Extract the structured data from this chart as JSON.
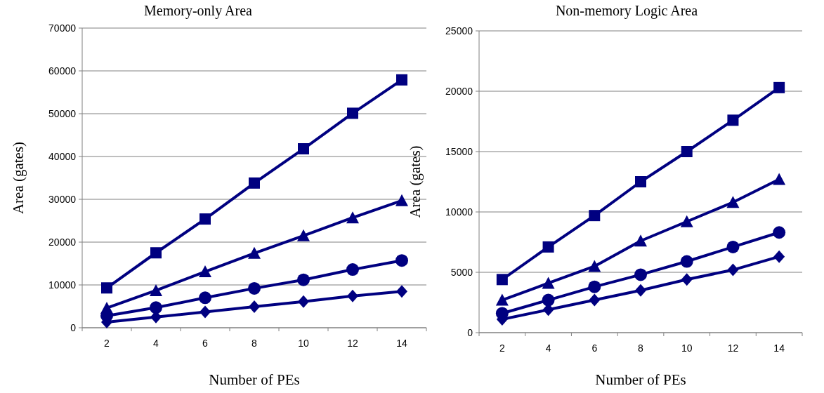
{
  "chart_data": [
    {
      "type": "line",
      "title": "Memory-only Area",
      "xlabel": "Number of PEs",
      "ylabel": "Area (gates)",
      "categories": [
        "2",
        "4",
        "6",
        "8",
        "10",
        "12",
        "14"
      ],
      "ylim": [
        0,
        70000
      ],
      "yticks": [
        0,
        10000,
        20000,
        30000,
        40000,
        50000,
        60000,
        70000
      ],
      "grid": "y",
      "line_style": "solid",
      "series": [
        {
          "color": "#000080",
          "marker": "square",
          "values": [
            9300,
            17500,
            25400,
            33800,
            41800,
            50100,
            57900
          ]
        },
        {
          "color": "#000080",
          "marker": "triangle",
          "values": [
            4600,
            8700,
            13100,
            17400,
            21500,
            25700,
            29700
          ]
        },
        {
          "color": "#000080",
          "marker": "circle",
          "values": [
            2800,
            4700,
            7000,
            9200,
            11200,
            13600,
            15700
          ]
        },
        {
          "color": "#000080",
          "marker": "diamond",
          "values": [
            1300,
            2500,
            3700,
            4900,
            6100,
            7400,
            8500
          ]
        }
      ]
    },
    {
      "type": "line",
      "title": "Non-memory Logic Area",
      "xlabel": "Number of PEs",
      "ylabel": "Area (gates)",
      "categories": [
        "2",
        "4",
        "6",
        "8",
        "10",
        "12",
        "14"
      ],
      "ylim": [
        0,
        25000
      ],
      "yticks": [
        0,
        5000,
        10000,
        15000,
        20000,
        25000
      ],
      "grid": "y",
      "line_style": "solid",
      "series": [
        {
          "color": "#000080",
          "marker": "square",
          "values": [
            4400,
            7100,
            9700,
            12500,
            15000,
            17600,
            20300
          ]
        },
        {
          "color": "#000080",
          "marker": "triangle",
          "values": [
            2700,
            4100,
            5500,
            7600,
            9200,
            10800,
            12700
          ]
        },
        {
          "color": "#000080",
          "marker": "circle",
          "values": [
            1600,
            2700,
            3800,
            4800,
            5900,
            7100,
            8300
          ]
        },
        {
          "color": "#000080",
          "marker": "diamond",
          "values": [
            1100,
            1900,
            2700,
            3500,
            4400,
            5200,
            6300
          ]
        }
      ]
    }
  ]
}
